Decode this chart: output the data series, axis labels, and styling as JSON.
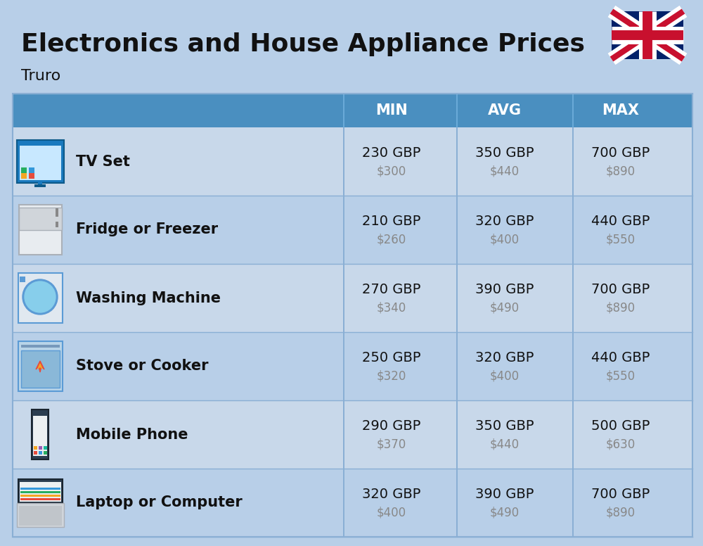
{
  "title_display": "Electronics and House Appliance Prices",
  "subtitle": "Truro",
  "bg_color": "#b8cfe8",
  "header_bg": "#4a8fc0",
  "header_text_color": "#ffffff",
  "row_bg_odd": "#c8d8ea",
  "row_bg_even": "#b8cfe8",
  "divider_color": "#8aafd4",
  "item_name_color": "#111111",
  "gbp_color": "#111111",
  "usd_color": "#888888",
  "rows": [
    {
      "name": "TV Set",
      "min_gbp": "230 GBP",
      "min_usd": "$300",
      "avg_gbp": "350 GBP",
      "avg_usd": "$440",
      "max_gbp": "700 GBP",
      "max_usd": "$890"
    },
    {
      "name": "Fridge or Freezer",
      "min_gbp": "210 GBP",
      "min_usd": "$260",
      "avg_gbp": "320 GBP",
      "avg_usd": "$400",
      "max_gbp": "440 GBP",
      "max_usd": "$550"
    },
    {
      "name": "Washing Machine",
      "min_gbp": "270 GBP",
      "min_usd": "$340",
      "avg_gbp": "390 GBP",
      "avg_usd": "$490",
      "max_gbp": "700 GBP",
      "max_usd": "$890"
    },
    {
      "name": "Stove or Cooker",
      "min_gbp": "250 GBP",
      "min_usd": "$320",
      "avg_gbp": "320 GBP",
      "avg_usd": "$400",
      "max_gbp": "440 GBP",
      "max_usd": "$550"
    },
    {
      "name": "Mobile Phone",
      "min_gbp": "290 GBP",
      "min_usd": "$370",
      "avg_gbp": "350 GBP",
      "avg_usd": "$440",
      "max_gbp": "500 GBP",
      "max_usd": "$630"
    },
    {
      "name": "Laptop or Computer",
      "min_gbp": "320 GBP",
      "min_usd": "$400",
      "avg_gbp": "390 GBP",
      "avg_usd": "$490",
      "max_gbp": "700 GBP",
      "max_usd": "$890"
    }
  ]
}
